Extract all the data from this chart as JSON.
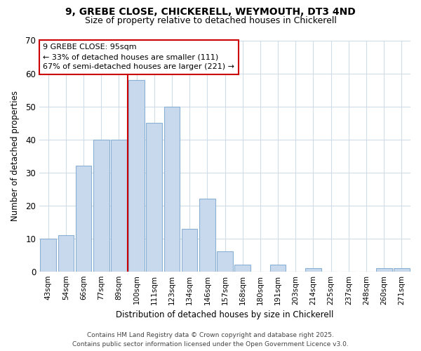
{
  "title_line1": "9, GREBE CLOSE, CHICKERELL, WEYMOUTH, DT3 4ND",
  "title_line2": "Size of property relative to detached houses in Chickerell",
  "xlabel": "Distribution of detached houses by size in Chickerell",
  "ylabel": "Number of detached properties",
  "categories": [
    "43sqm",
    "54sqm",
    "66sqm",
    "77sqm",
    "89sqm",
    "100sqm",
    "111sqm",
    "123sqm",
    "134sqm",
    "146sqm",
    "157sqm",
    "168sqm",
    "180sqm",
    "191sqm",
    "203sqm",
    "214sqm",
    "225sqm",
    "237sqm",
    "248sqm",
    "260sqm",
    "271sqm"
  ],
  "values": [
    10,
    11,
    32,
    40,
    40,
    58,
    45,
    50,
    13,
    22,
    6,
    2,
    0,
    2,
    0,
    1,
    0,
    0,
    0,
    1,
    1
  ],
  "bar_color": "#c8d9ee",
  "bar_edge_color": "#8ab0d4",
  "vline_color": "#cc0000",
  "vline_bar_index": 5,
  "annotation_title": "9 GREBE CLOSE: 95sqm",
  "annotation_line1": "← 33% of detached houses are smaller (111)",
  "annotation_line2": "67% of semi-detached houses are larger (221) →",
  "annotation_box_color": "#ffffff",
  "annotation_box_edge": "#cc0000",
  "ylim": [
    0,
    70
  ],
  "yticks": [
    0,
    10,
    20,
    30,
    40,
    50,
    60,
    70
  ],
  "footnote_line1": "Contains HM Land Registry data © Crown copyright and database right 2025.",
  "footnote_line2": "Contains public sector information licensed under the Open Government Licence v3.0.",
  "bg_color": "#ffffff",
  "grid_color": "#d0dce8",
  "title_fontsize": 10,
  "subtitle_fontsize": 9,
  "footnote_fontsize": 6.5
}
